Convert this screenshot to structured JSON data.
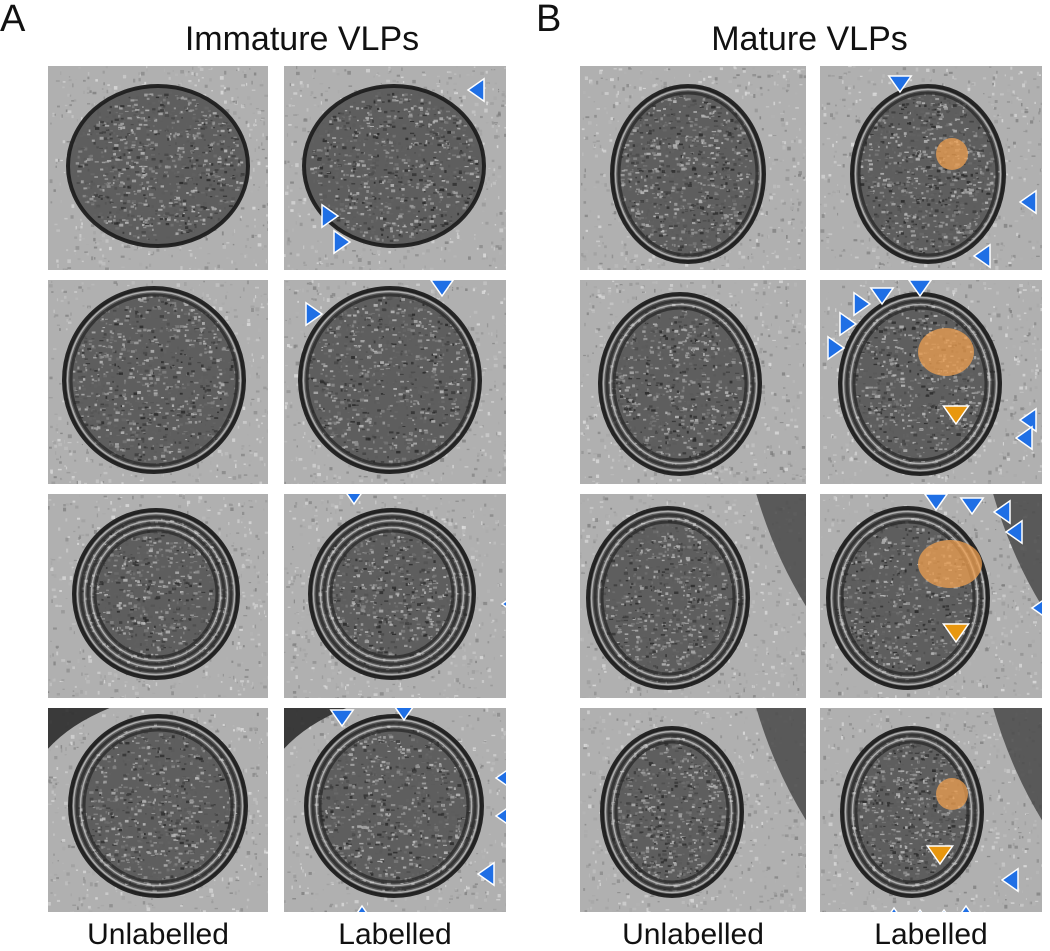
{
  "panels": [
    {
      "letter": "A",
      "title": "Immature VLPs",
      "columns": [
        "Unlabelled",
        "Labelled"
      ]
    },
    {
      "letter": "B",
      "title": "Mature VLPs",
      "columns": [
        "Unlabelled",
        "Labelled"
      ]
    }
  ],
  "colors": {
    "membrane_arrow": "#1f6fe5",
    "core_arrow": "#e8970f",
    "core_overlay": "#f0a050",
    "micrograph_background": "#a9a9a9"
  }
}
